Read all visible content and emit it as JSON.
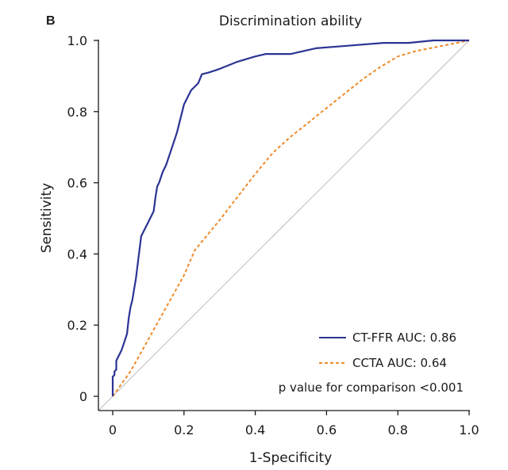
{
  "chart_data": {
    "type": "line",
    "panel_label": "B",
    "title": "Discrimination ability",
    "xlabel": "1-Specificity",
    "ylabel": "Sensitivity",
    "xlim": [
      0,
      1
    ],
    "ylim": [
      0,
      1
    ],
    "xticks": [
      0,
      0.2,
      0.4,
      0.6,
      0.8,
      1.0
    ],
    "xtick_labels": [
      "0",
      "0.2",
      "0.4",
      "0.6",
      "0.8",
      "1.0"
    ],
    "yticks": [
      0,
      0.2,
      0.4,
      0.6,
      0.8,
      1.0
    ],
    "ytick_labels": [
      "0",
      "0.2",
      "0.4",
      "0.6",
      "0.8",
      "1.0"
    ],
    "grid": false,
    "legend_position": "bottom-right",
    "reference_line": {
      "x": [
        0,
        1
      ],
      "y": [
        0,
        1
      ],
      "color": "#bdbdbd"
    },
    "series": [
      {
        "name": "CT-FFR AUC: 0.86",
        "style": "solid",
        "color": "#2b3494",
        "x": [
          0,
          0,
          0.005,
          0.005,
          0.01,
          0.01,
          0.015,
          0.02,
          0.025,
          0.03,
          0.035,
          0.04,
          0.045,
          0.05,
          0.055,
          0.06,
          0.065,
          0.07,
          0.08,
          0.09,
          0.1,
          0.11,
          0.115,
          0.12,
          0.125,
          0.13,
          0.14,
          0.15,
          0.16,
          0.17,
          0.18,
          0.19,
          0.2,
          0.22,
          0.24,
          0.25,
          0.27,
          0.3,
          0.35,
          0.4,
          0.43,
          0.5,
          0.57,
          0.66,
          0.76,
          0.83,
          0.9,
          1.0
        ],
        "y": [
          0,
          0.055,
          0.06,
          0.07,
          0.075,
          0.1,
          0.11,
          0.12,
          0.13,
          0.145,
          0.16,
          0.175,
          0.22,
          0.25,
          0.27,
          0.3,
          0.33,
          0.37,
          0.45,
          0.47,
          0.49,
          0.51,
          0.52,
          0.56,
          0.59,
          0.6,
          0.63,
          0.65,
          0.68,
          0.71,
          0.74,
          0.78,
          0.82,
          0.86,
          0.88,
          0.905,
          0.91,
          0.92,
          0.94,
          0.955,
          0.962,
          0.962,
          0.978,
          0.985,
          0.993,
          0.993,
          1.0,
          1.0
        ]
      },
      {
        "name": "CCTA AUC: 0.64",
        "style": "dashed",
        "color": "#f08a2a",
        "x": [
          0,
          0.05,
          0.1,
          0.15,
          0.2,
          0.23,
          0.3,
          0.35,
          0.4,
          0.45,
          0.5,
          0.55,
          0.6,
          0.65,
          0.7,
          0.75,
          0.8,
          0.85,
          0.9,
          0.95,
          1.0
        ],
        "y": [
          0,
          0.07,
          0.16,
          0.25,
          0.34,
          0.41,
          0.495,
          0.56,
          0.625,
          0.685,
          0.73,
          0.77,
          0.81,
          0.85,
          0.89,
          0.925,
          0.955,
          0.97,
          0.98,
          0.99,
          1.0
        ]
      }
    ],
    "annotation": "p value for comparison <0.001"
  }
}
